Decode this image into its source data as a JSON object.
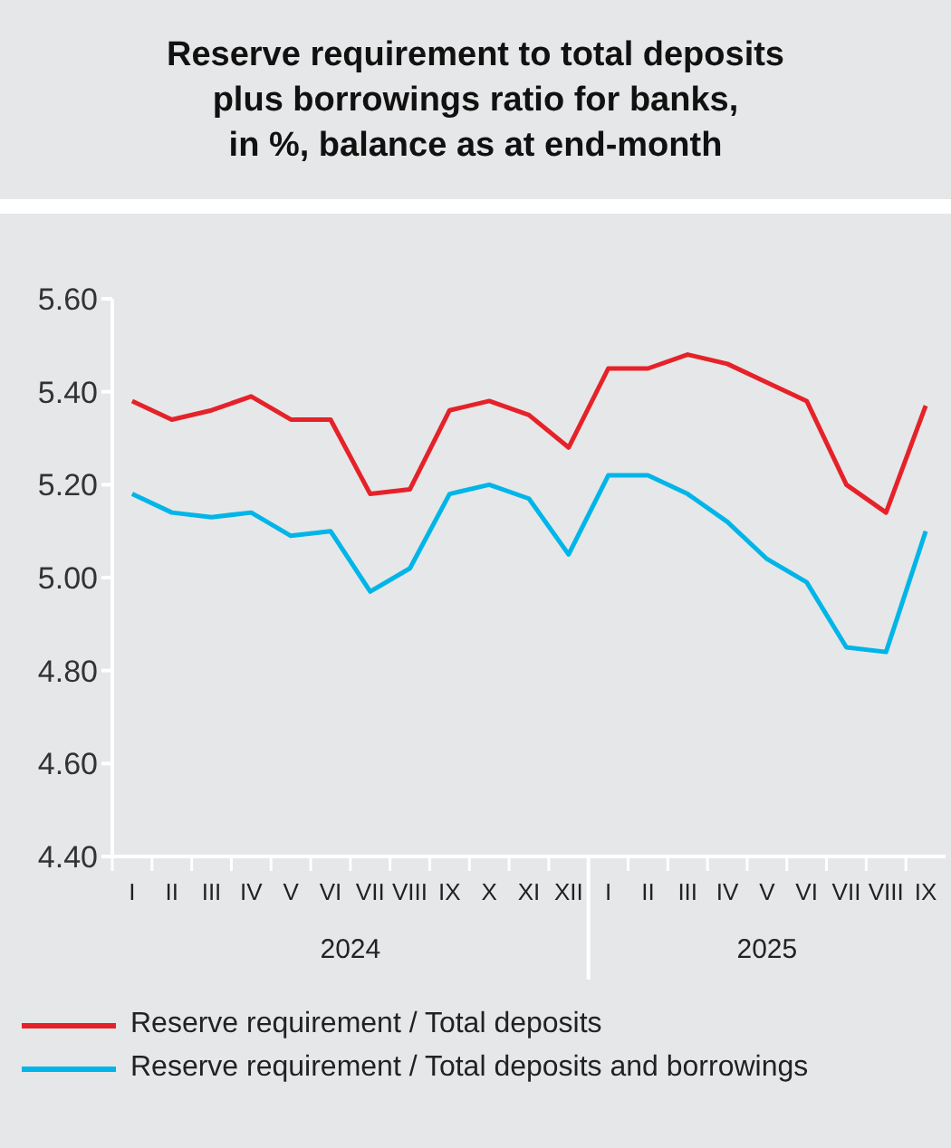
{
  "chart_data": {
    "type": "line",
    "title": "Reserve requirement to total deposits\nplus borrowings ratio for banks,\nin %, balance as at end-month",
    "categories": [
      "I",
      "II",
      "III",
      "IV",
      "V",
      "VI",
      "VII",
      "VIII",
      "IX",
      "X",
      "XI",
      "XII",
      "I",
      "II",
      "III",
      "IV",
      "V",
      "VI",
      "VII",
      "VIII",
      "IX"
    ],
    "annotations": [
      "2024",
      "2025"
    ],
    "series": [
      {
        "name": "Reserve requirement / Total deposits",
        "color": "#e52229",
        "values": [
          5.38,
          5.34,
          5.36,
          5.39,
          5.34,
          5.34,
          5.18,
          5.19,
          5.36,
          5.38,
          5.35,
          5.28,
          5.45,
          5.45,
          5.48,
          5.46,
          5.42,
          5.38,
          5.2,
          5.14,
          5.37
        ]
      },
      {
        "name": "Reserve requirement / Total deposits and borrowings",
        "color": "#00b5e8",
        "values": [
          5.18,
          5.14,
          5.13,
          5.14,
          5.09,
          5.1,
          4.97,
          5.02,
          5.18,
          5.2,
          5.17,
          5.05,
          5.22,
          5.22,
          5.18,
          5.12,
          5.04,
          4.99,
          4.85,
          4.84,
          5.1
        ]
      }
    ],
    "ylim": [
      4.4,
      5.6
    ],
    "yticks": [
      {
        "value": 4.4,
        "label": "4.40"
      },
      {
        "value": 4.6,
        "label": "4.60"
      },
      {
        "value": 4.8,
        "label": "4.80"
      },
      {
        "value": 5.0,
        "label": "5.00"
      },
      {
        "value": 5.2,
        "label": "5.20"
      },
      {
        "value": 5.4,
        "label": "5.40"
      },
      {
        "value": 5.6,
        "label": "5.60"
      }
    ],
    "grid": false,
    "legend": "bottom",
    "marker": "none",
    "line_style": "solid"
  }
}
